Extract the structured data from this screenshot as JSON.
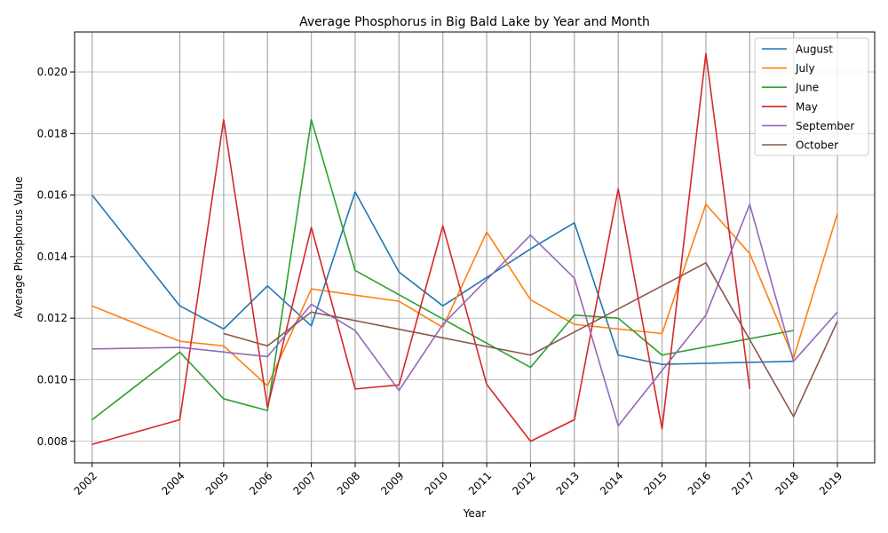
{
  "chart_data": {
    "type": "line",
    "title": "Average Phosphorus in Big Bald Lake by Year and Month",
    "xlabel": "Year",
    "ylabel": "Average Phosphorus Value",
    "x_ticks": [
      "2002",
      "2004",
      "2005",
      "2006",
      "2007",
      "2008",
      "2009",
      "2010",
      "2011",
      "2012",
      "2013",
      "2014",
      "2015",
      "2016",
      "2017",
      "2018",
      "2019"
    ],
    "y_ticks": [
      "0.008",
      "0.010",
      "0.012",
      "0.014",
      "0.016",
      "0.018",
      "0.020"
    ],
    "ylim": [
      0.0073,
      0.0213
    ],
    "grid": true,
    "legend_position": "top-right",
    "series": [
      {
        "name": "August",
        "color": "#1f77b4",
        "points": [
          [
            2002,
            0.016
          ],
          [
            2004,
            0.0124
          ],
          [
            2005,
            0.01165
          ],
          [
            2006,
            0.01305
          ],
          [
            2007,
            0.01175
          ],
          [
            2008,
            0.0161
          ],
          [
            2009,
            0.0135
          ],
          [
            2010,
            0.0124
          ],
          [
            2012,
            0.01425
          ],
          [
            2013,
            0.0151
          ],
          [
            2014,
            0.0108
          ],
          [
            2015,
            0.0105
          ],
          [
            2018,
            0.0106
          ]
        ]
      },
      {
        "name": "July",
        "color": "#ff7f0e",
        "points": [
          [
            2002,
            0.0124
          ],
          [
            2004,
            0.01125
          ],
          [
            2005,
            0.0111
          ],
          [
            2006,
            0.0098
          ],
          [
            2007,
            0.01295
          ],
          [
            2009,
            0.01255
          ],
          [
            2010,
            0.0117
          ],
          [
            2011,
            0.0148
          ],
          [
            2012,
            0.0126
          ],
          [
            2013,
            0.0118
          ],
          [
            2015,
            0.0115
          ],
          [
            2016,
            0.0157
          ],
          [
            2017,
            0.0141
          ],
          [
            2018,
            0.0107
          ],
          [
            2019,
            0.0154
          ]
        ]
      },
      {
        "name": "June",
        "color": "#2ca02c",
        "points": [
          [
            2002,
            0.0087
          ],
          [
            2004,
            0.0109
          ],
          [
            2005,
            0.00938
          ],
          [
            2006,
            0.009
          ],
          [
            2007,
            0.01845
          ],
          [
            2008,
            0.01355
          ],
          [
            2012,
            0.0104
          ],
          [
            2013,
            0.0121
          ],
          [
            2014,
            0.012
          ],
          [
            2015,
            0.0108
          ],
          [
            2018,
            0.0116
          ]
        ]
      },
      {
        "name": "May",
        "color": "#d62728",
        "points": [
          [
            2002,
            0.0079
          ],
          [
            2004,
            0.0087
          ],
          [
            2005,
            0.01845
          ],
          [
            2006,
            0.0091
          ],
          [
            2007,
            0.01495
          ],
          [
            2008,
            0.0097
          ],
          [
            2009,
            0.00983
          ],
          [
            2010,
            0.015
          ],
          [
            2011,
            0.00985
          ],
          [
            2012,
            0.008
          ],
          [
            2013,
            0.0087
          ],
          [
            2014,
            0.0162
          ],
          [
            2015,
            0.0084
          ],
          [
            2016,
            0.0206
          ],
          [
            2017,
            0.0097
          ]
        ]
      },
      {
        "name": "September",
        "color": "#9467bd",
        "points": [
          [
            2002,
            0.011
          ],
          [
            2004,
            0.01105
          ],
          [
            2006,
            0.01075
          ],
          [
            2007,
            0.01245
          ],
          [
            2008,
            0.0116
          ],
          [
            2009,
            0.00965
          ],
          [
            2010,
            0.0118
          ],
          [
            2012,
            0.0147
          ],
          [
            2013,
            0.0133
          ],
          [
            2014,
            0.0085
          ],
          [
            2016,
            0.0121
          ],
          [
            2017,
            0.0157
          ],
          [
            2018,
            0.0106
          ],
          [
            2019,
            0.0122
          ]
        ]
      },
      {
        "name": "October",
        "color": "#8c564b",
        "points": [
          [
            2005,
            0.0115
          ],
          [
            2006,
            0.0111
          ],
          [
            2007,
            0.0122
          ],
          [
            2012,
            0.0108
          ],
          [
            2016,
            0.0138
          ],
          [
            2018,
            0.0088
          ],
          [
            2019,
            0.0119
          ]
        ]
      }
    ]
  }
}
